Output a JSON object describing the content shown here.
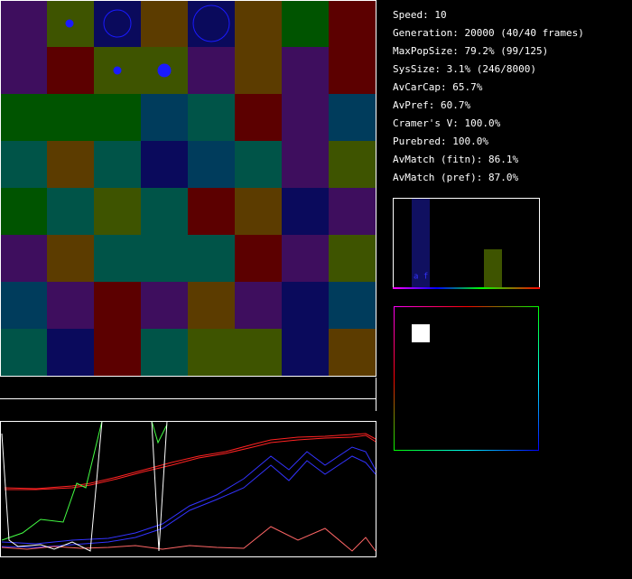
{
  "stats": [
    "Speed: 10",
    "Generation: 20000 (40/40 frames)",
    "MaxPopSize: 79.2% (99/125)",
    "SysSize: 3.1% (246/8000)",
    "AvCarCap: 65.7%",
    "AvPref: 60.7%",
    "Cramer's V: 100.0%",
    "Purebred: 100.0%",
    "AvMatch (fitn): 86.1%",
    "AvMatch (pref): 87.0%"
  ],
  "histogram_label": "a f",
  "palette": {
    "P": "#3e0e5e",
    "O": "#3e5400",
    "N": "#0a0a5c",
    "B": "#5c3c00",
    "G": "#005400",
    "M": "#5c0000",
    "T": "#005448",
    "D": "#003c5c"
  },
  "grid": [
    "PONBNBGM",
    "PMOOPBPM",
    "GGGDTMPD",
    "TBTNDTPO",
    "GTOTMBNP",
    "PBTTTMPO",
    "DPMPBPND",
    "TNMTOONB"
  ]
}
